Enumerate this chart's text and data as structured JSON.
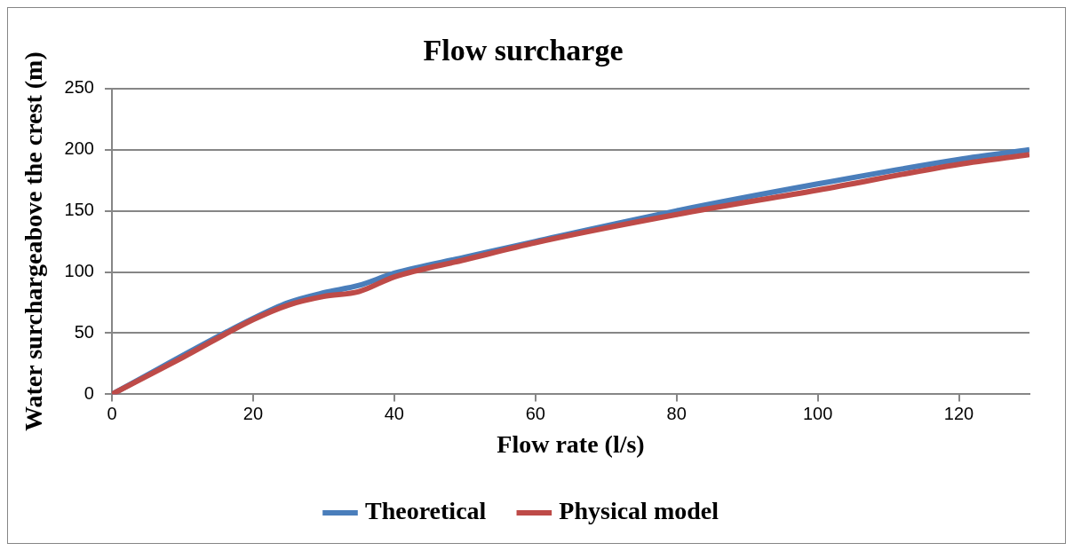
{
  "chart_data": {
    "type": "line",
    "title": "Flow surcharge",
    "xlabel": "Flow rate (l/s)",
    "ylabel": "Water surchargeabove the crest (m)",
    "x": [
      0,
      10,
      20,
      25,
      30,
      35,
      40,
      50,
      60,
      80,
      100,
      120,
      130
    ],
    "series": [
      {
        "name": "Theoretical",
        "color": "#4a7ebb",
        "values": [
          0,
          null,
          62,
          75,
          83,
          89,
          99,
          112,
          125,
          150,
          172,
          192,
          200
        ]
      },
      {
        "name": "Physical model",
        "color": "#be4b48",
        "values": [
          0,
          30,
          61,
          73,
          80,
          84,
          96,
          110,
          124,
          147,
          167,
          188,
          196
        ]
      }
    ],
    "xlim": [
      0,
      130
    ],
    "xticks": [
      0,
      20,
      40,
      60,
      80,
      100,
      120
    ],
    "ylim": [
      0,
      250
    ],
    "yticks": [
      0,
      50,
      100,
      150,
      200,
      250
    ],
    "grid": "y",
    "legend": "bottom",
    "marker": "none",
    "line_style": "solid"
  }
}
